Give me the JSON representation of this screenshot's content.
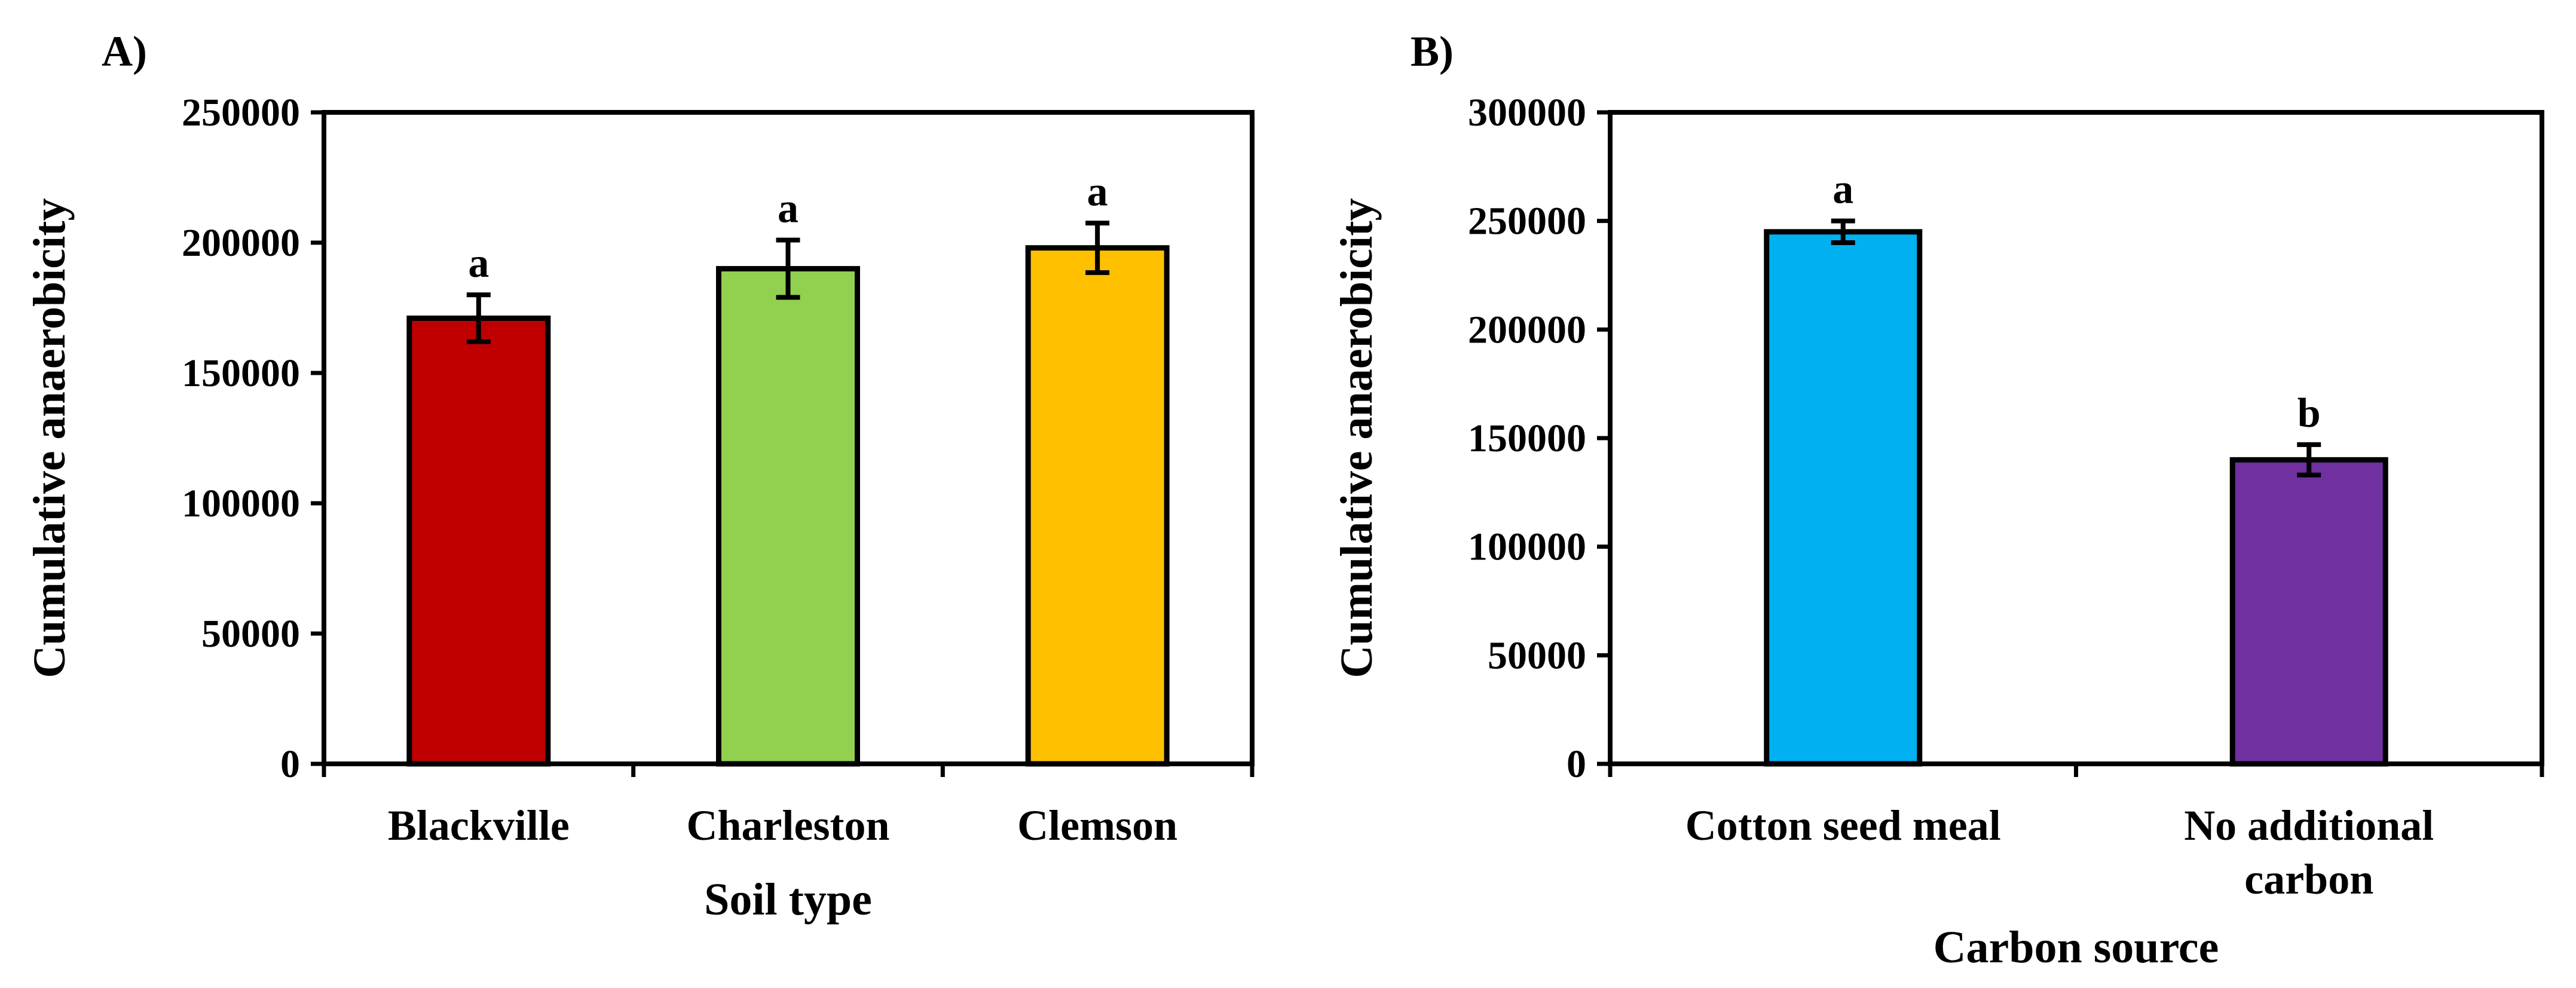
{
  "chart_data": [
    {
      "type": "bar",
      "panel_label": "A)",
      "xlabel": "Soil type",
      "ylabel": "Cumulative anaerobicity",
      "ylim": [
        0,
        250000
      ],
      "yticks": [
        0,
        50000,
        100000,
        150000,
        200000,
        250000
      ],
      "ytick_labels": [
        "0",
        "50000",
        "100000",
        "150000",
        "200000",
        "250000"
      ],
      "categories": [
        [
          "Blackville"
        ],
        [
          "Charleston"
        ],
        [
          "Clemson"
        ]
      ],
      "values": [
        171000,
        190000,
        198000
      ],
      "errors": [
        9000,
        11000,
        9500
      ],
      "significance": [
        "a",
        "a",
        "a"
      ],
      "colors": [
        "#C00000",
        "#92D050",
        "#FFC000"
      ]
    },
    {
      "type": "bar",
      "panel_label": "B)",
      "xlabel": "Carbon source",
      "ylabel": "Cumulative anaerobicity",
      "ylim": [
        0,
        300000
      ],
      "yticks": [
        0,
        50000,
        100000,
        150000,
        200000,
        250000,
        300000
      ],
      "ytick_labels": [
        "0",
        "50000",
        "100000",
        "150000",
        "200000",
        "250000",
        "300000"
      ],
      "categories": [
        [
          "Cotton seed meal"
        ],
        [
          "No additional",
          "carbon"
        ]
      ],
      "values": [
        245000,
        140000
      ],
      "errors": [
        5000,
        7000
      ],
      "significance": [
        "a",
        "b"
      ],
      "colors": [
        "#00B0F0",
        "#7030A0"
      ]
    }
  ]
}
